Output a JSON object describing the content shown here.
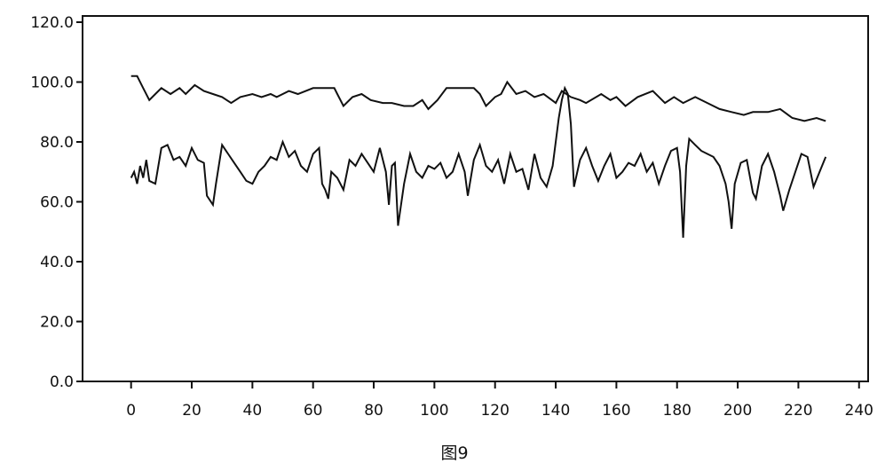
{
  "chart_data": {
    "type": "line",
    "title": "",
    "caption": "图9",
    "xlabel": "",
    "ylabel": "",
    "xlim": [
      -16,
      243
    ],
    "ylim": [
      0,
      120
    ],
    "grid": false,
    "xticks": [
      "0",
      "20",
      "40",
      "60",
      "80",
      "100",
      "120",
      "140",
      "160",
      "180",
      "200",
      "220",
      "240"
    ],
    "yticks": [
      "0.0",
      "20.0",
      "40.0",
      "60.0",
      "80.0",
      "100.0",
      "120.0"
    ],
    "line_color": "#111111",
    "series": [
      {
        "x": [
          0,
          2,
          4,
          6,
          8,
          10,
          13,
          16,
          18,
          21,
          24,
          27,
          30,
          33,
          36,
          40,
          43,
          46,
          48,
          52,
          55,
          60,
          64,
          67,
          68,
          70,
          73,
          76,
          79,
          83,
          86,
          90,
          93,
          96,
          98,
          101,
          104,
          108,
          113,
          115,
          117,
          120,
          122,
          124,
          127,
          130,
          133,
          136,
          140,
          142,
          145,
          148,
          150,
          155,
          158,
          160,
          163,
          167,
          172,
          176,
          179,
          182,
          186,
          190,
          194,
          198,
          202,
          205,
          210,
          214,
          218,
          222,
          226,
          229
        ],
        "y": [
          102,
          102,
          98,
          94,
          96,
          98,
          96,
          98,
          96,
          99,
          97,
          96,
          95,
          93,
          95,
          96,
          95,
          96,
          95,
          97,
          96,
          98,
          98,
          98,
          96,
          92,
          95,
          96,
          94,
          93,
          93,
          92,
          92,
          94,
          91,
          94,
          98,
          98,
          98,
          96,
          92,
          95,
          96,
          100,
          96,
          97,
          95,
          96,
          93,
          97,
          95,
          94,
          93,
          96,
          94,
          95,
          92,
          95,
          97,
          93,
          95,
          93,
          95,
          93,
          91,
          90,
          89,
          90,
          90,
          91,
          88,
          87,
          88,
          87
        ]
      },
      {
        "x": [
          0,
          1,
          2,
          3,
          4,
          5,
          6,
          8,
          10,
          12,
          14,
          16,
          18,
          20,
          22,
          24,
          25,
          27,
          28,
          30,
          32,
          34,
          36,
          38,
          40,
          42,
          44,
          46,
          48,
          50,
          52,
          54,
          56,
          58,
          60,
          62,
          63,
          64,
          65,
          66,
          68,
          70,
          72,
          74,
          76,
          78,
          80,
          82,
          84,
          85,
          86,
          87,
          88,
          90,
          92,
          94,
          96,
          98,
          100,
          102,
          104,
          106,
          108,
          110,
          111,
          113,
          115,
          117,
          119,
          121,
          123,
          125,
          127,
          129,
          131,
          133,
          135,
          137,
          139,
          141,
          142,
          143,
          144,
          145,
          146,
          148,
          150,
          152,
          154,
          156,
          158,
          160,
          162,
          164,
          166,
          168,
          170,
          172,
          174,
          176,
          178,
          180,
          181,
          182,
          183,
          184,
          186,
          188,
          190,
          192,
          194,
          196,
          197,
          198,
          199,
          201,
          203,
          205,
          206,
          208,
          210,
          212,
          214,
          215,
          217,
          219,
          221,
          223,
          225,
          227,
          229
        ],
        "y": [
          68,
          70,
          66,
          72,
          68,
          74,
          67,
          66,
          78,
          79,
          74,
          75,
          72,
          78,
          74,
          73,
          62,
          59,
          66,
          79,
          76,
          73,
          70,
          67,
          66,
          70,
          72,
          75,
          74,
          80,
          75,
          77,
          72,
          70,
          76,
          78,
          66,
          64,
          61,
          70,
          68,
          64,
          74,
          72,
          76,
          73,
          70,
          78,
          70,
          59,
          72,
          73,
          52,
          66,
          76,
          70,
          68,
          72,
          71,
          73,
          68,
          70,
          76,
          70,
          62,
          74,
          79,
          72,
          70,
          74,
          66,
          76,
          70,
          71,
          64,
          76,
          68,
          65,
          72,
          88,
          94,
          98,
          96,
          86,
          65,
          74,
          78,
          72,
          67,
          72,
          76,
          68,
          70,
          73,
          72,
          76,
          70,
          73,
          66,
          72,
          77,
          78,
          70,
          48,
          72,
          81,
          79,
          77,
          76,
          75,
          72,
          66,
          60,
          51,
          66,
          73,
          74,
          63,
          61,
          72,
          76,
          70,
          62,
          57,
          64,
          70,
          76,
          75,
          65,
          70,
          75
        ]
      }
    ]
  }
}
